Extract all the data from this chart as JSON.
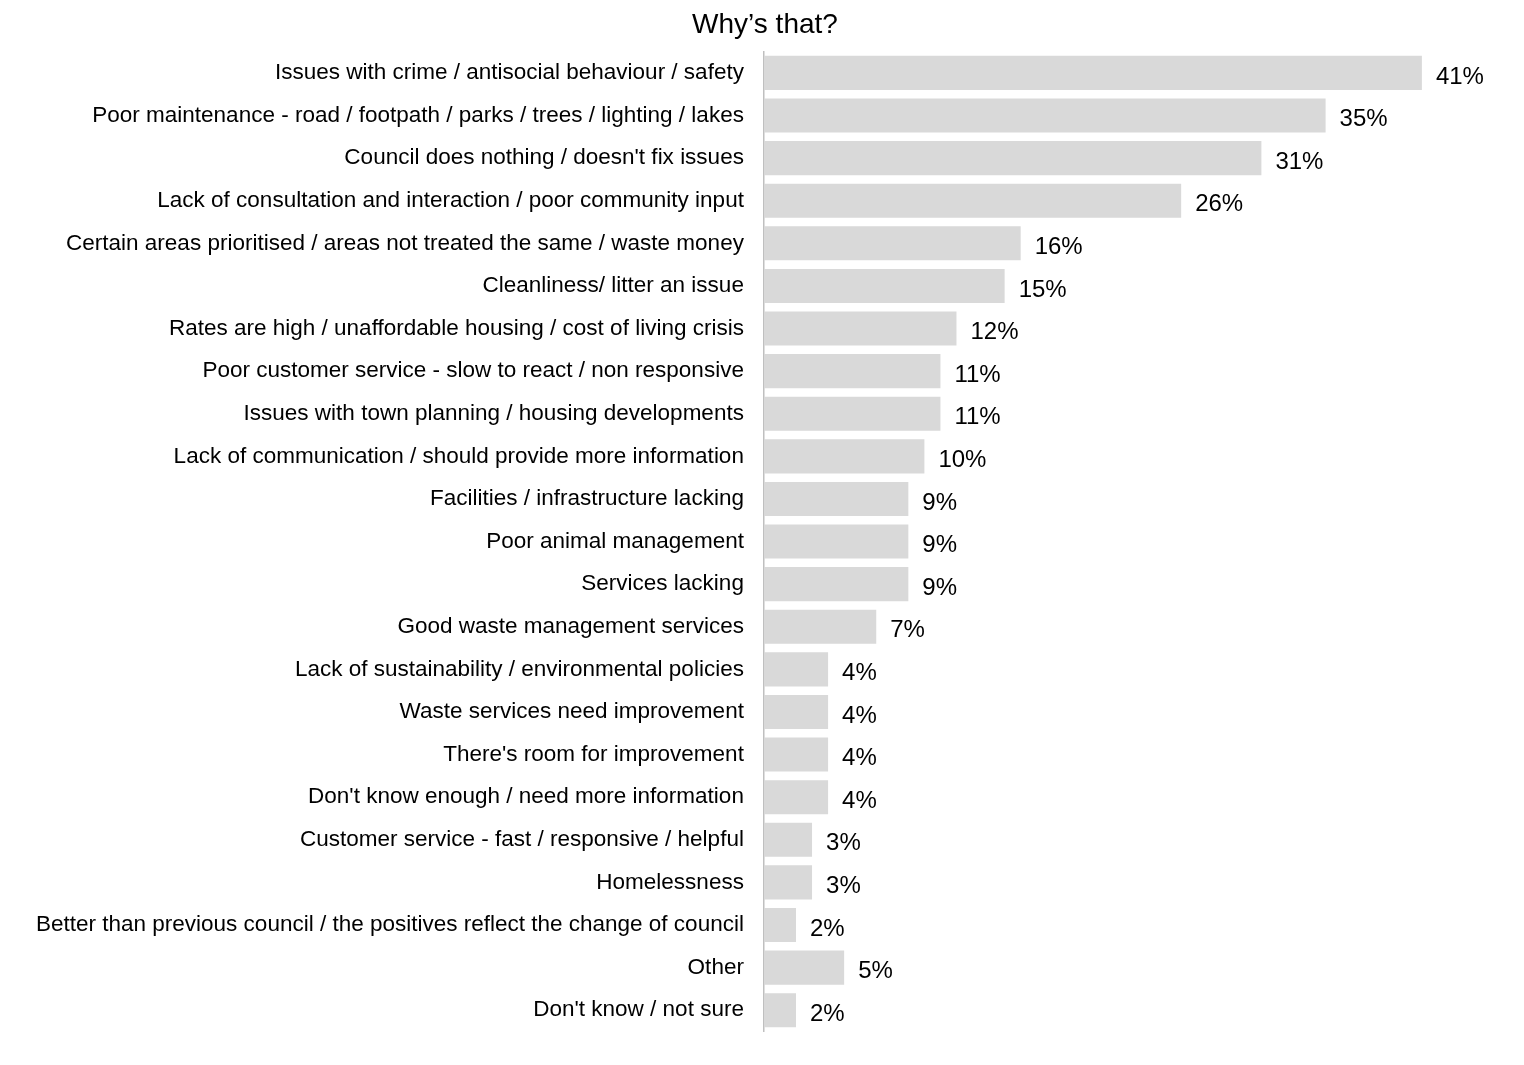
{
  "chart_data": {
    "type": "bar",
    "orientation": "horizontal",
    "title": "Why’s that?",
    "categories": [
      "Issues with crime / antisocial behaviour / safety",
      "Poor maintenance - road / footpath / parks / trees / lighting / lakes",
      "Council does nothing / doesn't fix issues",
      "Lack of consultation and interaction / poor community input",
      "Certain areas prioritised / areas not treated the same / waste money",
      "Cleanliness/ litter an issue",
      "Rates are high / unaffordable housing / cost of living crisis",
      "Poor customer service - slow to react / non responsive",
      "Issues with town planning / housing developments",
      "Lack of communication / should provide more information",
      "Facilities / infrastructure lacking",
      "Poor animal management",
      "Services lacking",
      "Good waste management services",
      "Lack of sustainability / environmental policies",
      "Waste services need improvement",
      "There's room for improvement",
      "Don't know enough / need more information",
      "Customer service - fast / responsive / helpful",
      "Homelessness",
      "Better than previous council / the positives reflect the change of council",
      "Other",
      "Don't know / not sure"
    ],
    "values": [
      41,
      35,
      31,
      26,
      16,
      15,
      12,
      11,
      11,
      10,
      9,
      9,
      9,
      7,
      4,
      4,
      4,
      4,
      3,
      3,
      2,
      5,
      2
    ],
    "value_labels": [
      "41%",
      "35%",
      "31%",
      "26%",
      "16%",
      "15%",
      "12%",
      "11%",
      "11%",
      "10%",
      "9%",
      "9%",
      "9%",
      "7%",
      "4%",
      "4%",
      "4%",
      "4%",
      "3%",
      "3%",
      "2%",
      "5%",
      "2%"
    ],
    "color": "#d9d9d9",
    "legend": false
  }
}
